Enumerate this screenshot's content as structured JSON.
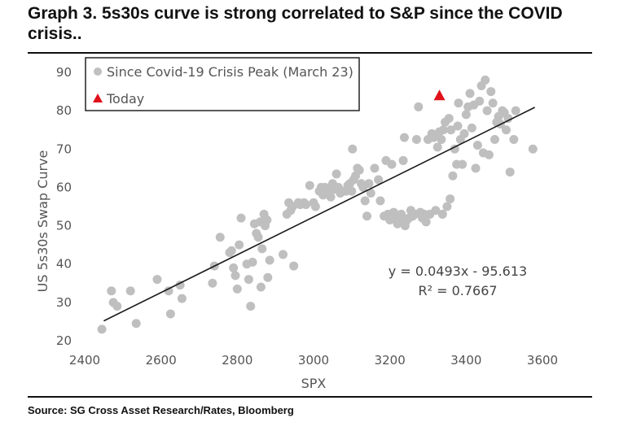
{
  "title": "Graph 3. 5s30s curve is strong correlated to S&P since the COVID crisis..",
  "source": "Source: SG Cross Asset Research/Rates, Bloomberg",
  "colors": {
    "points": "#bfbfbf",
    "today": "#e0111b",
    "trendline": "#1a1a1a",
    "text": "#555555"
  },
  "chart_data": {
    "type": "scatter",
    "xlabel": "SPX",
    "ylabel": "US 5s30s Swap Curve",
    "xlim": [
      2400,
      3600
    ],
    "ylim": [
      20,
      90
    ],
    "xticks": [
      "2400",
      "2600",
      "2800",
      "3000",
      "3200",
      "3400",
      "3600"
    ],
    "yticks": [
      "20",
      "30",
      "40",
      "50",
      "60",
      "70",
      "80",
      "90"
    ],
    "grid": false,
    "legend_position": "top-left",
    "legend": [
      {
        "marker": "circle",
        "label": "Since Covid-19 Crisis Peak (March 23)"
      },
      {
        "marker": "triangle",
        "label": "Today"
      }
    ],
    "trendline": {
      "slope": 0.0493,
      "intercept": -95.613,
      "x_range": [
        2450,
        3580
      ],
      "equation": "y = 0.0493x - 95.613",
      "r_squared": "R² = 0.7667"
    },
    "today": {
      "x": 3330,
      "y": 84
    },
    "series": [
      {
        "name": "Since Covid-19 Crisis Peak (March 23)",
        "points": [
          [
            2445,
            23
          ],
          [
            2470,
            33
          ],
          [
            2475,
            30
          ],
          [
            2485,
            29
          ],
          [
            2520,
            33
          ],
          [
            2535,
            24.5
          ],
          [
            2590,
            36
          ],
          [
            2620,
            33
          ],
          [
            2625,
            27
          ],
          [
            2650,
            34.5
          ],
          [
            2655,
            31
          ],
          [
            2735,
            35
          ],
          [
            2740,
            39.5
          ],
          [
            2755,
            47
          ],
          [
            2780,
            43
          ],
          [
            2785,
            43.5
          ],
          [
            2790,
            39
          ],
          [
            2795,
            37
          ],
          [
            2800,
            33.5
          ],
          [
            2805,
            45
          ],
          [
            2810,
            52
          ],
          [
            2825,
            40
          ],
          [
            2830,
            36
          ],
          [
            2835,
            29
          ],
          [
            2840,
            40.5
          ],
          [
            2845,
            50.5
          ],
          [
            2850,
            48
          ],
          [
            2855,
            47
          ],
          [
            2860,
            51
          ],
          [
            2862,
            34
          ],
          [
            2865,
            44
          ],
          [
            2870,
            53
          ],
          [
            2873,
            50
          ],
          [
            2878,
            51.5
          ],
          [
            2880,
            36.5
          ],
          [
            2885,
            41
          ],
          [
            2920,
            42.5
          ],
          [
            2930,
            53
          ],
          [
            2935,
            56
          ],
          [
            2940,
            54
          ],
          [
            2945,
            55
          ],
          [
            2948,
            39.5
          ],
          [
            2960,
            56
          ],
          [
            2965,
            55.5
          ],
          [
            2975,
            56
          ],
          [
            2980,
            55.5
          ],
          [
            2990,
            60.5
          ],
          [
            3000,
            56
          ],
          [
            3005,
            55
          ],
          [
            3015,
            59
          ],
          [
            3020,
            60
          ],
          [
            3025,
            58
          ],
          [
            3030,
            60
          ],
          [
            3035,
            58.5
          ],
          [
            3040,
            59
          ],
          [
            3045,
            57.5
          ],
          [
            3050,
            61
          ],
          [
            3055,
            59.5
          ],
          [
            3060,
            63.5
          ],
          [
            3065,
            60
          ],
          [
            3070,
            58.5
          ],
          [
            3075,
            59
          ],
          [
            3085,
            59
          ],
          [
            3090,
            60.5
          ],
          [
            3095,
            61
          ],
          [
            3100,
            59
          ],
          [
            3102,
            70
          ],
          [
            3105,
            62
          ],
          [
            3110,
            63
          ],
          [
            3115,
            65
          ],
          [
            3120,
            64.5
          ],
          [
            3125,
            61
          ],
          [
            3130,
            60
          ],
          [
            3135,
            56.5
          ],
          [
            3140,
            52.5
          ],
          [
            3145,
            61
          ],
          [
            3150,
            58.5
          ],
          [
            3160,
            65
          ],
          [
            3170,
            62
          ],
          [
            3175,
            56.5
          ],
          [
            3185,
            52.5
          ],
          [
            3190,
            67
          ],
          [
            3195,
            53
          ],
          [
            3200,
            51.5
          ],
          [
            3205,
            66
          ],
          [
            3210,
            53.5
          ],
          [
            3215,
            52
          ],
          [
            3220,
            50.5
          ],
          [
            3225,
            51
          ],
          [
            3230,
            53
          ],
          [
            3235,
            67
          ],
          [
            3238,
            73
          ],
          [
            3240,
            50
          ],
          [
            3245,
            51.5
          ],
          [
            3250,
            52
          ],
          [
            3255,
            54
          ],
          [
            3260,
            52.5
          ],
          [
            3265,
            53
          ],
          [
            3270,
            72.5
          ],
          [
            3275,
            81
          ],
          [
            3280,
            53.5
          ],
          [
            3285,
            52
          ],
          [
            3290,
            53
          ],
          [
            3295,
            51
          ],
          [
            3300,
            72.5
          ],
          [
            3305,
            53
          ],
          [
            3310,
            74
          ],
          [
            3315,
            73
          ],
          [
            3320,
            54
          ],
          [
            3325,
            70.5
          ],
          [
            3330,
            74.5
          ],
          [
            3335,
            72.5
          ],
          [
            3338,
            53
          ],
          [
            3340,
            75
          ],
          [
            3345,
            77
          ],
          [
            3350,
            55
          ],
          [
            3355,
            78
          ],
          [
            3358,
            57
          ],
          [
            3360,
            75
          ],
          [
            3365,
            63
          ],
          [
            3370,
            70
          ],
          [
            3375,
            66
          ],
          [
            3378,
            76
          ],
          [
            3380,
            82
          ],
          [
            3385,
            72.5
          ],
          [
            3390,
            66
          ],
          [
            3395,
            74
          ],
          [
            3400,
            79
          ],
          [
            3405,
            81
          ],
          [
            3410,
            84.5
          ],
          [
            3415,
            75.5
          ],
          [
            3420,
            81.5
          ],
          [
            3425,
            65
          ],
          [
            3430,
            71
          ],
          [
            3435,
            82.5
          ],
          [
            3440,
            86.5
          ],
          [
            3445,
            69
          ],
          [
            3450,
            88
          ],
          [
            3455,
            80
          ],
          [
            3460,
            68.5
          ],
          [
            3465,
            85
          ],
          [
            3470,
            82
          ],
          [
            3475,
            72.5
          ],
          [
            3480,
            77
          ],
          [
            3485,
            78.5
          ],
          [
            3490,
            76.5
          ],
          [
            3495,
            80
          ],
          [
            3500,
            79.5
          ],
          [
            3505,
            75
          ],
          [
            3510,
            78
          ],
          [
            3515,
            64
          ],
          [
            3525,
            72.5
          ],
          [
            3530,
            80
          ],
          [
            3575,
            70
          ]
        ]
      }
    ]
  }
}
